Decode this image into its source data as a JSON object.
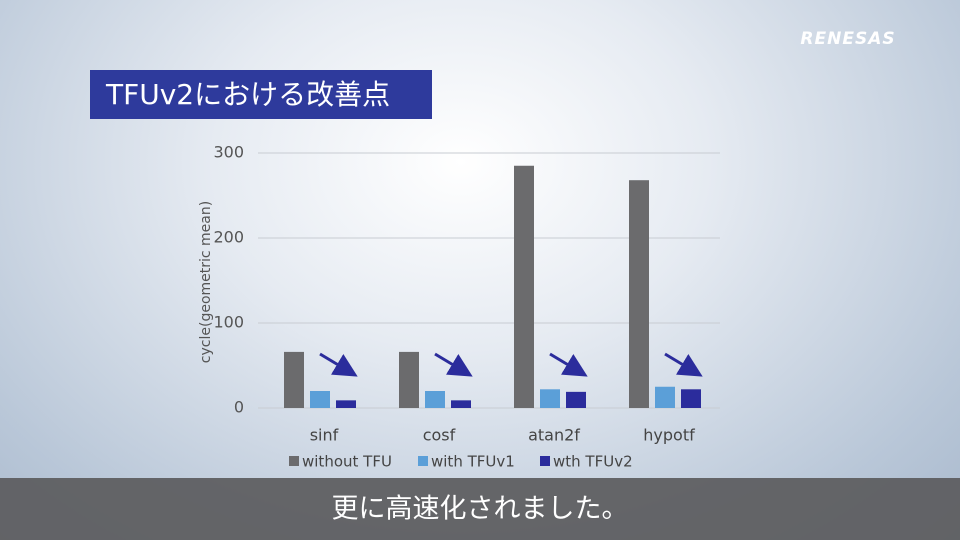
{
  "logo": "RENESAS",
  "caption": "更に高速化されました。",
  "chart_data": {
    "type": "bar",
    "title": "TFUv2における改善点",
    "y_label": "cycle(geometric mean)",
    "categories": [
      "sinf",
      "cosf",
      "atan2f",
      "hypotf"
    ],
    "series": [
      {
        "name": "without TFU",
        "color": "#6b6b6d",
        "values": [
          66,
          66,
          285,
          268
        ]
      },
      {
        "name": "with TFUv1",
        "color": "#5b9fd8",
        "values": [
          20,
          20,
          22,
          25
        ]
      },
      {
        "name": "wth TFUv2",
        "color": "#2b2c9c",
        "values": [
          9,
          9,
          19,
          22
        ]
      }
    ],
    "ylim": [
      0,
      300
    ],
    "yticks": [
      0,
      100,
      200,
      300
    ],
    "grid": true,
    "legend": "bottom"
  }
}
